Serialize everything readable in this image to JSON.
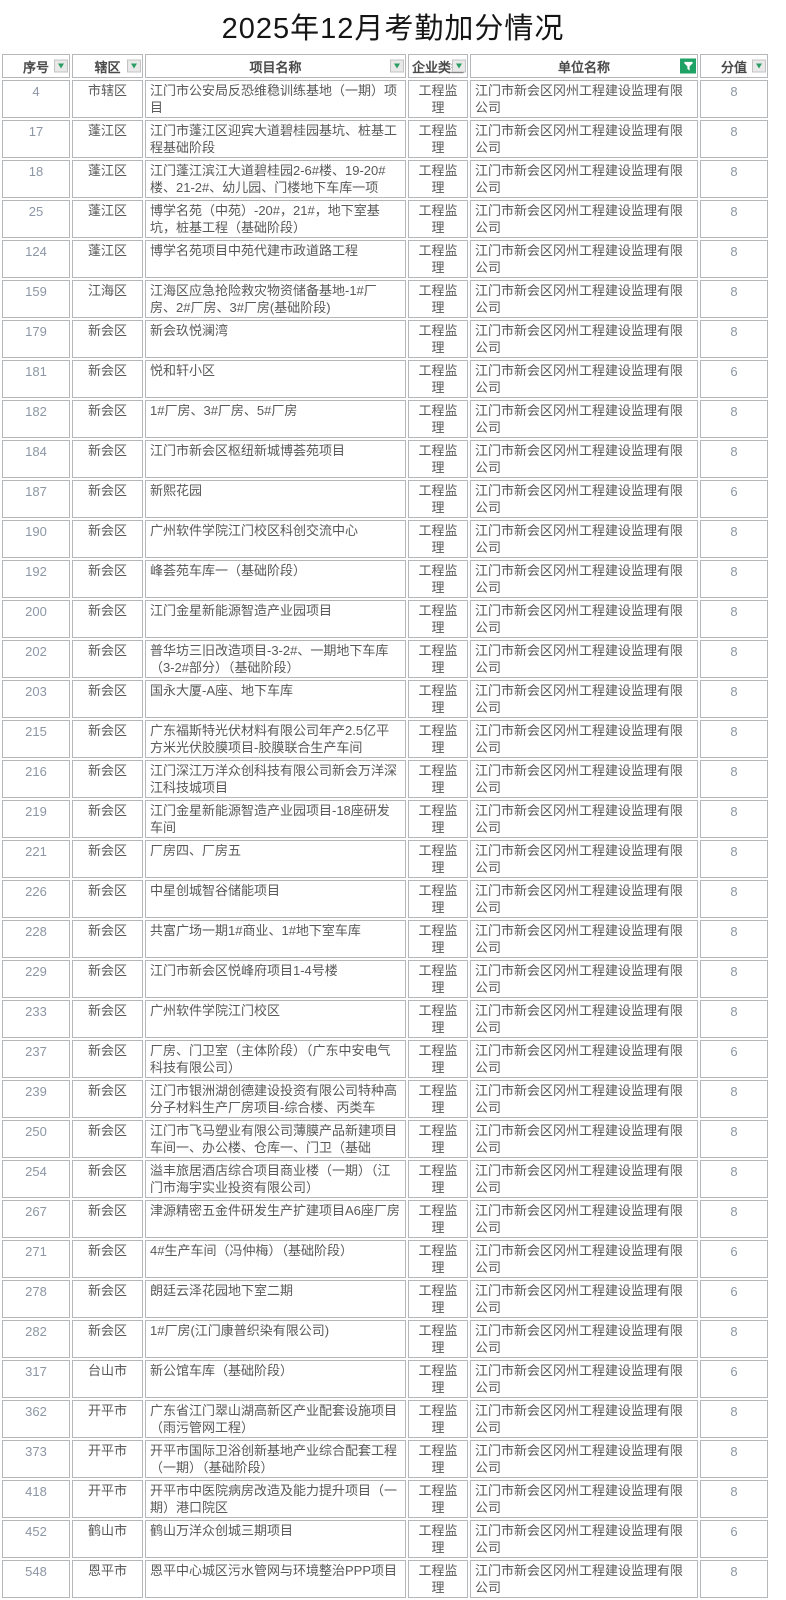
{
  "title": "2025年12月考勤加分情况",
  "colors": {
    "accent_green": "#1fa265",
    "grid_border": "#b5b8bb",
    "text_dark": "#595959",
    "text_number": "#8c96a5",
    "filter_button_bg": "#e9e9e9"
  },
  "table": {
    "columns": [
      {
        "key": "seq",
        "label": "序号",
        "filter": "dropdown"
      },
      {
        "key": "district",
        "label": "辖区",
        "filter": "dropdown"
      },
      {
        "key": "project",
        "label": "项目名称",
        "filter": "dropdown"
      },
      {
        "key": "type",
        "label": "企业类型",
        "filter": "dropdown"
      },
      {
        "key": "company",
        "label": "单位名称",
        "filter": "active"
      },
      {
        "key": "score",
        "label": "分值",
        "filter": "dropdown"
      }
    ],
    "rows": [
      [
        4,
        "市辖区",
        "江门市公安局反恐维稳训练基地（一期）项目",
        "工程监理",
        "江门市新会区冈州工程建设监理有限公司",
        8
      ],
      [
        17,
        "蓬江区",
        "江门市蓬江区迎宾大道碧桂园基坑、桩基工程基础阶段",
        "工程监理",
        "江门市新会区冈州工程建设监理有限公司",
        8
      ],
      [
        18,
        "蓬江区",
        "江门蓬江滨江大道碧桂园2-6#楼、19-20#楼、21-2#、幼儿园、门楼地下车库一项",
        "工程监理",
        "江门市新会区冈州工程建设监理有限公司",
        8
      ],
      [
        25,
        "蓬江区",
        "博学名苑（中苑）-20#，21#，地下室基坑，桩基工程（基础阶段）",
        "工程监理",
        "江门市新会区冈州工程建设监理有限公司",
        8
      ],
      [
        124,
        "蓬江区",
        "博学名苑项目中苑代建市政道路工程",
        "工程监理",
        "江门市新会区冈州工程建设监理有限公司",
        8
      ],
      [
        159,
        "江海区",
        "江海区应急抢险救灾物资储备基地-1#厂房、2#厂房、3#厂房(基础阶段)",
        "工程监理",
        "江门市新会区冈州工程建设监理有限公司",
        8
      ],
      [
        179,
        "新会区",
        "新会玖悦澜湾",
        "工程监理",
        "江门市新会区冈州工程建设监理有限公司",
        8
      ],
      [
        181,
        "新会区",
        "悦和轩小区",
        "工程监理",
        "江门市新会区冈州工程建设监理有限公司",
        6
      ],
      [
        182,
        "新会区",
        "1#厂房、3#厂房、5#厂房",
        "工程监理",
        "江门市新会区冈州工程建设监理有限公司",
        8
      ],
      [
        184,
        "新会区",
        "江门市新会区枢纽新城博荟苑项目",
        "工程监理",
        "江门市新会区冈州工程建设监理有限公司",
        8
      ],
      [
        187,
        "新会区",
        "新熙花园",
        "工程监理",
        "江门市新会区冈州工程建设监理有限公司",
        6
      ],
      [
        190,
        "新会区",
        "广州软件学院江门校区科创交流中心",
        "工程监理",
        "江门市新会区冈州工程建设监理有限公司",
        8
      ],
      [
        192,
        "新会区",
        "峰荟苑车库一（基础阶段）",
        "工程监理",
        "江门市新会区冈州工程建设监理有限公司",
        8
      ],
      [
        200,
        "新会区",
        "江门金星新能源智造产业园项目",
        "工程监理",
        "江门市新会区冈州工程建设监理有限公司",
        8
      ],
      [
        202,
        "新会区",
        "普华坊三旧改造项目-3-2#、一期地下车库（3-2#部分）（基础阶段）",
        "工程监理",
        "江门市新会区冈州工程建设监理有限公司",
        8
      ],
      [
        203,
        "新会区",
        "国永大厦-A座、地下车库",
        "工程监理",
        "江门市新会区冈州工程建设监理有限公司",
        8
      ],
      [
        215,
        "新会区",
        "广东福斯特光伏材料有限公司年产2.5亿平方米光伏胶膜项目-胶膜联合生产车间",
        "工程监理",
        "江门市新会区冈州工程建设监理有限公司",
        8
      ],
      [
        216,
        "新会区",
        "江门深江万洋众创科技有限公司新会万洋深江科技城项目",
        "工程监理",
        "江门市新会区冈州工程建设监理有限公司",
        8
      ],
      [
        219,
        "新会区",
        "江门金星新能源智造产业园项目-18座研发车间",
        "工程监理",
        "江门市新会区冈州工程建设监理有限公司",
        8
      ],
      [
        221,
        "新会区",
        "厂房四、厂房五",
        "工程监理",
        "江门市新会区冈州工程建设监理有限公司",
        8
      ],
      [
        226,
        "新会区",
        "中星创城智谷储能项目",
        "工程监理",
        "江门市新会区冈州工程建设监理有限公司",
        8
      ],
      [
        228,
        "新会区",
        "共富广场一期1#商业、1#地下室车库",
        "工程监理",
        "江门市新会区冈州工程建设监理有限公司",
        8
      ],
      [
        229,
        "新会区",
        "江门市新会区悦峰府项目1-4号楼",
        "工程监理",
        "江门市新会区冈州工程建设监理有限公司",
        8
      ],
      [
        233,
        "新会区",
        "广州软件学院江门校区",
        "工程监理",
        "江门市新会区冈州工程建设监理有限公司",
        8
      ],
      [
        237,
        "新会区",
        "厂房、门卫室（主体阶段）（广东中安电气科技有限公司）",
        "工程监理",
        "江门市新会区冈州工程建设监理有限公司",
        6
      ],
      [
        239,
        "新会区",
        "江门市银洲湖创德建设投资有限公司特种高分子材料生产厂房项目-综合楼、丙类车",
        "工程监理",
        "江门市新会区冈州工程建设监理有限公司",
        8
      ],
      [
        250,
        "新会区",
        "江门市飞马塑业有限公司薄膜产品新建项目 车间一、办公楼、仓库一、门卫（基础",
        "工程监理",
        "江门市新会区冈州工程建设监理有限公司",
        8
      ],
      [
        254,
        "新会区",
        "溢丰旅居酒店综合项目商业楼（一期）（江门市海宇实业投资有限公司）",
        "工程监理",
        "江门市新会区冈州工程建设监理有限公司",
        8
      ],
      [
        267,
        "新会区",
        "津源精密五金件研发生产扩建项目A6座厂房",
        "工程监理",
        "江门市新会区冈州工程建设监理有限公司",
        8
      ],
      [
        271,
        "新会区",
        "4#生产车间（冯仲梅）（基础阶段）",
        "工程监理",
        "江门市新会区冈州工程建设监理有限公司",
        6
      ],
      [
        278,
        "新会区",
        "朗廷云泽花园地下室二期",
        "工程监理",
        "江门市新会区冈州工程建设监理有限公司",
        6
      ],
      [
        282,
        "新会区",
        "1#厂房(江门康普织染有限公司)",
        "工程监理",
        "江门市新会区冈州工程建设监理有限公司",
        8
      ],
      [
        317,
        "台山市",
        "新公馆车库（基础阶段）",
        "工程监理",
        "江门市新会区冈州工程建设监理有限公司",
        6
      ],
      [
        362,
        "开平市",
        "广东省江门翠山湖高新区产业配套设施项目（雨污管网工程）",
        "工程监理",
        "江门市新会区冈州工程建设监理有限公司",
        8
      ],
      [
        373,
        "开平市",
        "开平市国际卫浴创新基地产业综合配套工程（一期）（基础阶段）",
        "工程监理",
        "江门市新会区冈州工程建设监理有限公司",
        8
      ],
      [
        418,
        "开平市",
        "开平市中医院病房改造及能力提升项目（一期）港口院区",
        "工程监理",
        "江门市新会区冈州工程建设监理有限公司",
        8
      ],
      [
        452,
        "鹤山市",
        "鹤山万洋众创城三期项目",
        "工程监理",
        "江门市新会区冈州工程建设监理有限公司",
        6
      ],
      [
        548,
        "恩平市",
        "恩平中心城区污水管网与环境整治PPP项目",
        "工程监理",
        "江门市新会区冈州工程建设监理有限公司",
        8
      ]
    ]
  }
}
